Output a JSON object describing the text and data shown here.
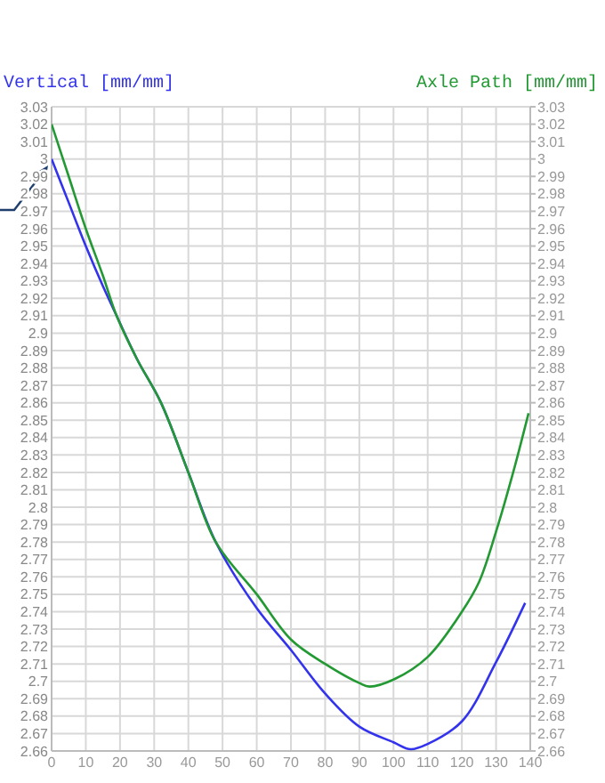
{
  "chart_data": {
    "type": "line",
    "ylabel": "Vertical [mm/mm]",
    "y2label": "Axle Path [mm/mm]",
    "xlim": [
      0,
      140
    ],
    "xticks": [
      0,
      10,
      20,
      30,
      40,
      50,
      60,
      70,
      80,
      90,
      100,
      110,
      120,
      130,
      140
    ],
    "ylim": [
      2.66,
      3.03
    ],
    "yticks": [
      2.66,
      2.67,
      2.68,
      2.69,
      2.7,
      2.71,
      2.72,
      2.73,
      2.74,
      2.75,
      2.76,
      2.77,
      2.78,
      2.79,
      2.8,
      2.81,
      2.82,
      2.83,
      2.84,
      2.85,
      2.86,
      2.87,
      2.88,
      2.89,
      2.9,
      2.91,
      2.92,
      2.93,
      2.94,
      2.95,
      2.96,
      2.97,
      2.98,
      2.99,
      3,
      3.01,
      3.02,
      3.03
    ],
    "y2lim": [
      2.66,
      3.03
    ],
    "y2ticks": [
      2.66,
      2.67,
      2.68,
      2.69,
      2.7,
      2.71,
      2.72,
      2.73,
      2.74,
      2.75,
      2.76,
      2.77,
      2.78,
      2.79,
      2.8,
      2.81,
      2.82,
      2.83,
      2.84,
      2.85,
      2.86,
      2.87,
      2.88,
      2.89,
      2.9,
      2.91,
      2.92,
      2.93,
      2.94,
      2.95,
      2.96,
      2.97,
      2.98,
      2.99,
      3,
      3.01,
      3.02,
      3.03
    ],
    "grid": true,
    "marker": "none",
    "line_style": "solid",
    "series": [
      {
        "color": "#3333ee",
        "x": [
          0,
          5,
          10,
          15,
          19,
          25,
          32,
          40,
          48,
          60,
          70,
          80,
          90,
          100,
          105,
          110,
          120,
          130,
          138.5
        ],
        "values": [
          3.0,
          2.975,
          2.95,
          2.927,
          2.91,
          2.885,
          2.86,
          2.82,
          2.78,
          2.742,
          2.718,
          2.693,
          2.674,
          2.665,
          2.661,
          2.664,
          2.677,
          2.711,
          2.745
        ]
      },
      {
        "color": "#229933",
        "x": [
          0,
          5,
          10,
          15,
          19,
          25,
          32,
          40,
          48,
          60,
          70,
          80,
          90,
          93,
          100,
          110,
          120,
          125,
          130,
          135,
          139.5
        ],
        "values": [
          3.02,
          2.99,
          2.96,
          2.933,
          2.91,
          2.885,
          2.86,
          2.82,
          2.78,
          2.75,
          2.724,
          2.71,
          2.699,
          2.697,
          2.701,
          2.714,
          2.74,
          2.757,
          2.786,
          2.82,
          2.854
        ]
      }
    ]
  }
}
